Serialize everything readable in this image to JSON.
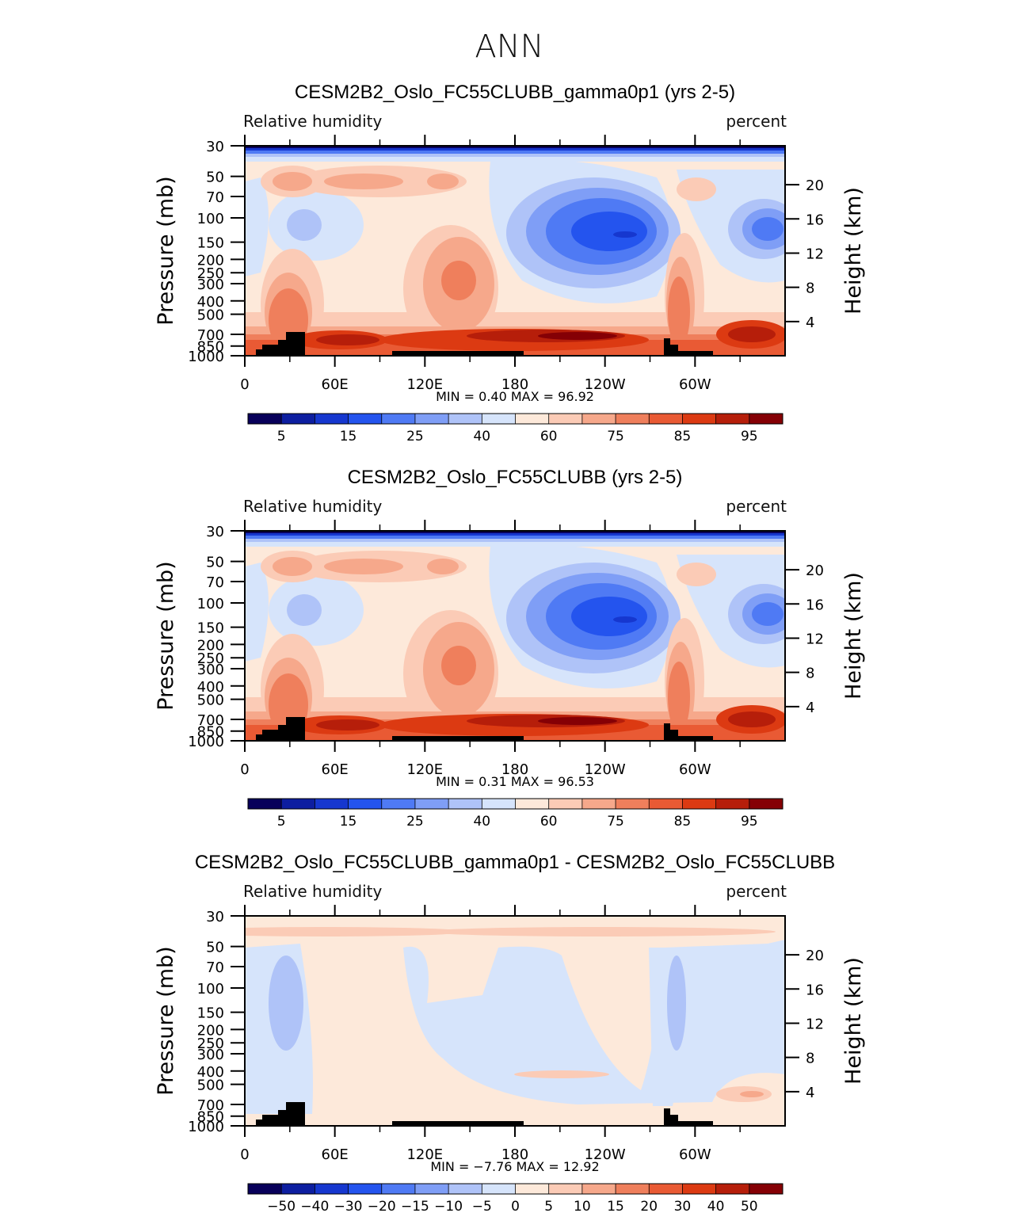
{
  "figure": {
    "title": "ANN"
  },
  "chart_data": [
    {
      "type": "contour",
      "title": "CESM2B2_Oslo_FC55CLUBB_gamma0p1 (yrs 2-5)",
      "left_label": "Relative  humidity",
      "right_label": "percent",
      "ylabel": "Pressure  (mb)",
      "ylabel_right": "Height  (km)",
      "x_ticks": [
        "0",
        "60E",
        "120E",
        "180",
        "120W",
        "60W"
      ],
      "y_ticks": [
        "30",
        "50",
        "70",
        "100",
        "150",
        "200",
        "250",
        "300",
        "400",
        "500",
        "700",
        "850",
        "1000"
      ],
      "y_ticks_right": [
        "20",
        "16",
        "12",
        "8",
        "4"
      ],
      "stats": "MIN =     0.40   MAX =    96.92",
      "colorbar": {
        "levels": [
          "5",
          "15",
          "25",
          "40",
          "60",
          "75",
          "85",
          "95"
        ],
        "colors": [
          "#08005a",
          "#0d1ea0",
          "#1637cf",
          "#2454ee",
          "#4f7af4",
          "#7f9ef6",
          "#afc3f8",
          "#d6e4fb",
          "#fde9da",
          "#fbcbb6",
          "#f6a88b",
          "#ef7f5c",
          "#e95a34",
          "#dc3a12",
          "#b61e0a",
          "#850005"
        ]
      },
      "min": 0.4,
      "max": 96.92
    },
    {
      "type": "contour",
      "title": "CESM2B2_Oslo_FC55CLUBB (yrs 2-5)",
      "left_label": "Relative  humidity",
      "right_label": "percent",
      "ylabel": "Pressure  (mb)",
      "ylabel_right": "Height  (km)",
      "x_ticks": [
        "0",
        "60E",
        "120E",
        "180",
        "120W",
        "60W"
      ],
      "y_ticks": [
        "30",
        "50",
        "70",
        "100",
        "150",
        "200",
        "250",
        "300",
        "400",
        "500",
        "700",
        "850",
        "1000"
      ],
      "y_ticks_right": [
        "20",
        "16",
        "12",
        "8",
        "4"
      ],
      "stats": "MIN =     0.31   MAX =    96.53",
      "colorbar": {
        "levels": [
          "5",
          "15",
          "25",
          "40",
          "60",
          "75",
          "85",
          "95"
        ],
        "colors": [
          "#08005a",
          "#0d1ea0",
          "#1637cf",
          "#2454ee",
          "#4f7af4",
          "#7f9ef6",
          "#afc3f8",
          "#d6e4fb",
          "#fde9da",
          "#fbcbb6",
          "#f6a88b",
          "#ef7f5c",
          "#e95a34",
          "#dc3a12",
          "#b61e0a",
          "#850005"
        ]
      },
      "min": 0.31,
      "max": 96.53
    },
    {
      "type": "contour",
      "title": "CESM2B2_Oslo_FC55CLUBB_gamma0p1 - CESM2B2_Oslo_FC55CLUBB",
      "left_label": "Relative  humidity",
      "right_label": "percent",
      "ylabel": "Pressure  (mb)",
      "ylabel_right": "Height  (km)",
      "x_ticks": [
        "0",
        "60E",
        "120E",
        "180",
        "120W",
        "60W"
      ],
      "y_ticks": [
        "30",
        "50",
        "70",
        "100",
        "150",
        "200",
        "250",
        "300",
        "400",
        "500",
        "700",
        "850",
        "1000"
      ],
      "y_ticks_right": [
        "20",
        "16",
        "12",
        "8",
        "4"
      ],
      "stats": "MIN =   −7.76   MAX =    12.92",
      "colorbar": {
        "levels": [
          "−50",
          "−40",
          "−30",
          "−20",
          "−15",
          "−10",
          "−5",
          "0",
          "5",
          "10",
          "15",
          "20",
          "30",
          "40",
          "50"
        ],
        "colors": [
          "#08005a",
          "#0d1ea0",
          "#1637cf",
          "#2454ee",
          "#4f7af4",
          "#7f9ef6",
          "#afc3f8",
          "#d6e4fb",
          "#fde9da",
          "#fbcbb6",
          "#f6a88b",
          "#ef7f5c",
          "#e95a34",
          "#dc3a12",
          "#b61e0a",
          "#850005"
        ]
      },
      "min": -7.76,
      "max": 12.92
    }
  ]
}
